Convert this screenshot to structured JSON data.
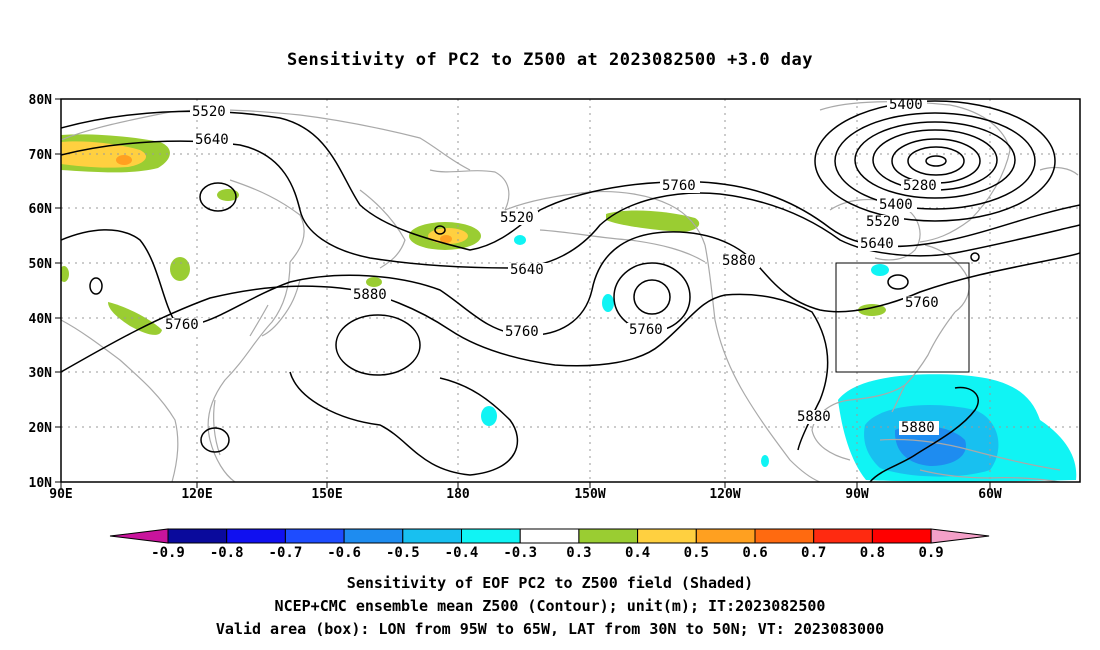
{
  "title": "Sensitivity of PC2 to Z500 at 2023082500 +3.0 day",
  "lat_labels": [
    "80N",
    "70N",
    "60N",
    "50N",
    "40N",
    "30N",
    "20N",
    "10N"
  ],
  "lon_labels": [
    "90E",
    "120E",
    "150E",
    "180",
    "150W",
    "120W",
    "90W",
    "60W"
  ],
  "contour_labels": [
    {
      "text": "5520",
      "name": "contour-label-5520-nw"
    },
    {
      "text": "5640",
      "name": "contour-label-5640-nw"
    },
    {
      "text": "5400",
      "name": "contour-label-5400-ne"
    },
    {
      "text": "5280",
      "name": "contour-label-5280"
    },
    {
      "text": "5400",
      "name": "contour-label-5400-e"
    },
    {
      "text": "5520",
      "name": "contour-label-5520-e"
    },
    {
      "text": "5640",
      "name": "contour-label-5640-e"
    },
    {
      "text": "5760",
      "name": "contour-label-5760-center"
    },
    {
      "text": "5520",
      "name": "contour-label-5520-center"
    },
    {
      "text": "5640",
      "name": "contour-label-5640-center"
    },
    {
      "text": "5880",
      "name": "contour-label-5880-east"
    },
    {
      "text": "5760",
      "name": "contour-label-5760-box"
    },
    {
      "text": "5880",
      "name": "contour-label-5880-west"
    },
    {
      "text": "5760",
      "name": "contour-label-5760-west"
    },
    {
      "text": "5760",
      "name": "contour-label-5760-mid"
    },
    {
      "text": "5760",
      "name": "contour-label-5760-low"
    },
    {
      "text": "5880",
      "name": "contour-label-5880-gulf"
    },
    {
      "text": "5880",
      "name": "contour-label-5880-carib"
    }
  ],
  "colorbar": {
    "labels": [
      "-0.9",
      "-0.8",
      "-0.7",
      "-0.6",
      "-0.5",
      "-0.4",
      "-0.3",
      "0.3",
      "0.4",
      "0.5",
      "0.6",
      "0.7",
      "0.8",
      "0.9"
    ],
    "colors": [
      "#0a0a9c",
      "#1010f0",
      "#1e4cff",
      "#1e8cf0",
      "#18c0f0",
      "#10f4f4",
      "#ffffff",
      "#9acd32",
      "#ffd040",
      "#ffa020",
      "#ff6a10",
      "#ff2a10",
      "#ff0000"
    ],
    "end_low": "#c8149c",
    "end_high": "#f4a0c8"
  },
  "captions": {
    "line1": "Sensitivity of EOF PC2 to Z500 field (Shaded)",
    "line2": "NCEP+CMC ensemble mean Z500 (Contour); unit(m); IT:2023082500",
    "line3": "Valid area (box): LON from 95W to 65W, LAT from 30N to 50N; VT: 2023083000"
  },
  "valid_box": {
    "lon_min": "95W",
    "lon_max": "65W",
    "lat_min": "30N",
    "lat_max": "50N"
  },
  "colors": {
    "contour": "#000000",
    "coast": "#a9a9a9",
    "grid": "#9a9a9a",
    "frame": "#000000"
  }
}
